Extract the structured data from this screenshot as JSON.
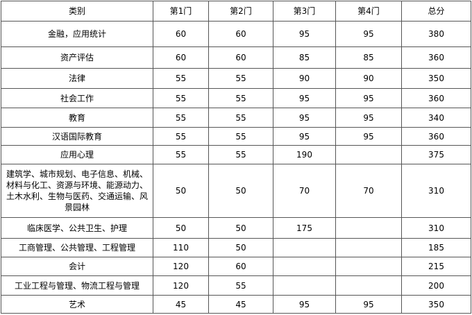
{
  "headers": [
    "类别",
    "第1门",
    "第2门",
    "第3门",
    "第4门",
    "总分"
  ],
  "rows": [
    [
      "金融，应用统计",
      "60",
      "60",
      "95",
      "95",
      "380"
    ],
    [
      "资产评估",
      "60",
      "60",
      "85",
      "85",
      "360"
    ],
    [
      "法律",
      "55",
      "55",
      "90",
      "90",
      "350"
    ],
    [
      "社会工作",
      "55",
      "55",
      "95",
      "95",
      "360"
    ],
    [
      "教育",
      "55",
      "55",
      "95",
      "95",
      "340"
    ],
    [
      "汉语国际教育",
      "55",
      "55",
      "95",
      "95",
      "360"
    ],
    [
      "应用心理",
      "55",
      "55",
      "190",
      "",
      "375"
    ],
    [
      "建筑学、城市规划、电子信息、机械、材料与化工、资源与环境、能源动力、土木水利、生物与医药、交通运输、风景园林",
      "50",
      "50",
      "70",
      "70",
      "310"
    ],
    [
      "临床医学、公共卫生、护理",
      "50",
      "50",
      "175",
      "",
      "310"
    ],
    [
      "工商管理、公共管理、工程管理",
      "110",
      "50",
      "",
      "",
      "185"
    ],
    [
      "会计",
      "120",
      "60",
      "",
      "",
      "215"
    ],
    [
      "工业工程与管理、物流工程与管理",
      "120",
      "55",
      "",
      "",
      "200"
    ],
    [
      "艺术",
      "45",
      "45",
      "95",
      "95",
      "350"
    ]
  ]
}
